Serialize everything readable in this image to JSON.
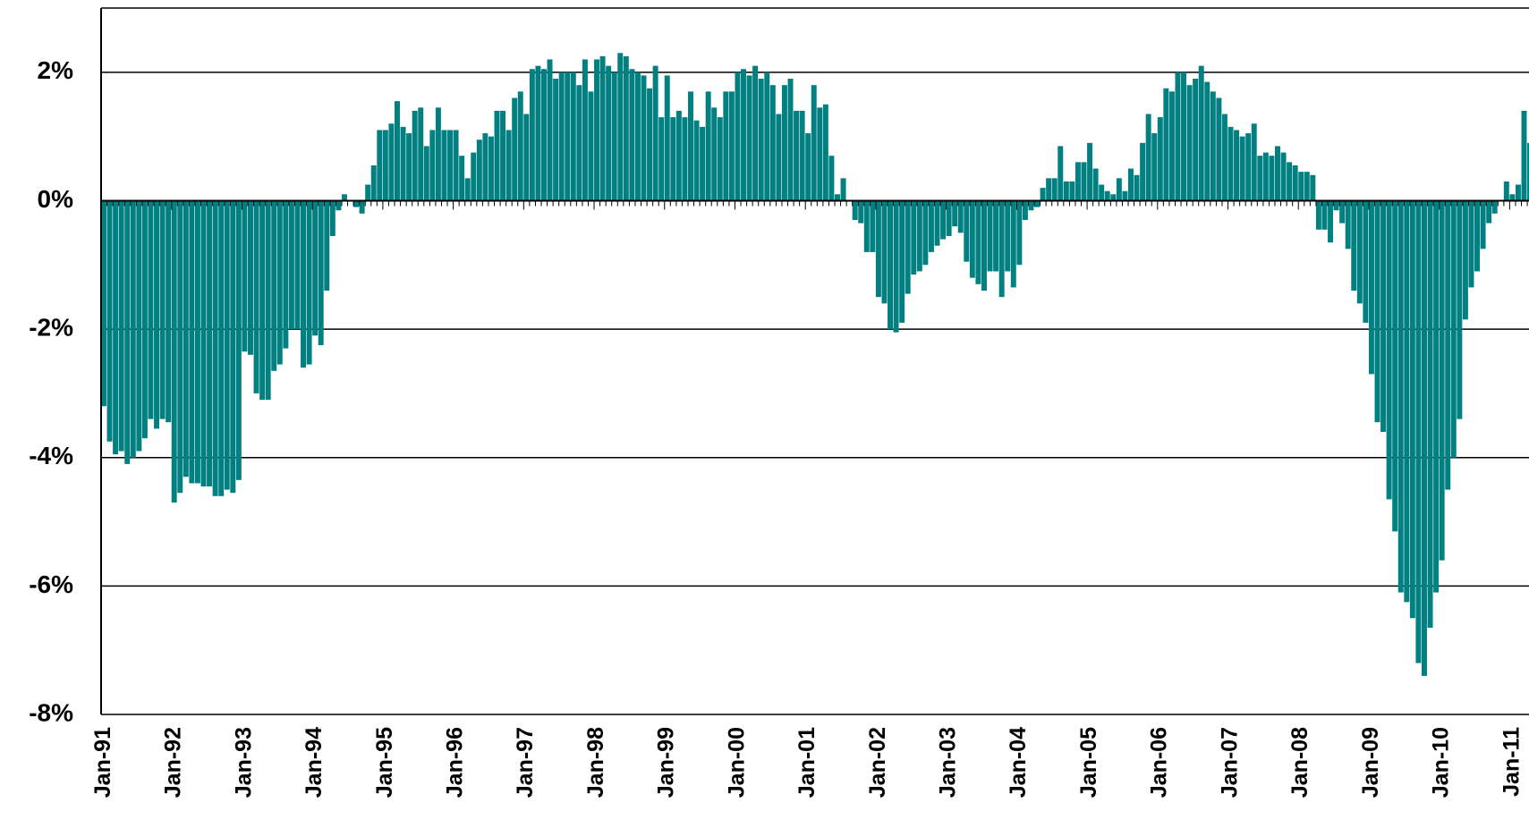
{
  "chart_data": {
    "type": "bar",
    "color": "#008080",
    "grid": true,
    "ylim": [
      -8,
      3
    ],
    "yticks": [
      {
        "value": -8,
        "label": "-8%"
      },
      {
        "value": -6,
        "label": "-6%"
      },
      {
        "value": -4,
        "label": "-4%"
      },
      {
        "value": -2,
        "label": "-2%"
      },
      {
        "value": 0,
        "label": "0%"
      },
      {
        "value": 2,
        "label": "2%"
      }
    ],
    "categories": [
      "Jan-91",
      null,
      null,
      null,
      null,
      null,
      null,
      null,
      null,
      null,
      null,
      null,
      "Jan-92",
      null,
      null,
      null,
      null,
      null,
      null,
      null,
      null,
      null,
      null,
      null,
      "Jan-93",
      null,
      null,
      null,
      null,
      null,
      null,
      null,
      null,
      null,
      null,
      null,
      "Jan-94",
      null,
      null,
      null,
      null,
      null,
      null,
      null,
      null,
      null,
      null,
      null,
      "Jan-95",
      null,
      null,
      null,
      null,
      null,
      null,
      null,
      null,
      null,
      null,
      null,
      "Jan-96",
      null,
      null,
      null,
      null,
      null,
      null,
      null,
      null,
      null,
      null,
      null,
      "Jan-97",
      null,
      null,
      null,
      null,
      null,
      null,
      null,
      null,
      null,
      null,
      null,
      "Jan-98",
      null,
      null,
      null,
      null,
      null,
      null,
      null,
      null,
      null,
      null,
      null,
      "Jan-99",
      null,
      null,
      null,
      null,
      null,
      null,
      null,
      null,
      null,
      null,
      null,
      "Jan-00",
      null,
      null,
      null,
      null,
      null,
      null,
      null,
      null,
      null,
      null,
      null,
      "Jan-01",
      null,
      null,
      null,
      null,
      null,
      null,
      null,
      null,
      null,
      null,
      null,
      "Jan-02",
      null,
      null,
      null,
      null,
      null,
      null,
      null,
      null,
      null,
      null,
      null,
      "Jan-03",
      null,
      null,
      null,
      null,
      null,
      null,
      null,
      null,
      null,
      null,
      null,
      "Jan-04",
      null,
      null,
      null,
      null,
      null,
      null,
      null,
      null,
      null,
      null,
      null,
      "Jan-05",
      null,
      null,
      null,
      null,
      null,
      null,
      null,
      null,
      null,
      null,
      null,
      "Jan-06",
      null,
      null,
      null,
      null,
      null,
      null,
      null,
      null,
      null,
      null,
      null,
      "Jan-07",
      null,
      null,
      null,
      null,
      null,
      null,
      null,
      null,
      null,
      null,
      null,
      "Jan-08",
      null,
      null,
      null,
      null,
      null,
      null,
      null,
      null,
      null,
      null,
      null,
      "Jan-09",
      null,
      null,
      null,
      null,
      null,
      null,
      null,
      null,
      null,
      null,
      null,
      "Jan-10",
      null,
      null,
      null,
      null,
      null,
      null,
      null,
      null,
      null,
      null,
      null,
      "Jan-11",
      null,
      null,
      null
    ],
    "values": [
      -3.2,
      -3.75,
      -3.95,
      -3.9,
      -4.1,
      -4.0,
      -3.9,
      -3.7,
      -3.4,
      -3.55,
      -3.4,
      -3.45,
      -4.7,
      -4.55,
      -4.3,
      -4.4,
      -4.4,
      -4.45,
      -4.45,
      -4.6,
      -4.6,
      -4.5,
      -4.55,
      -4.35,
      -2.35,
      -2.4,
      -3.0,
      -3.1,
      -3.1,
      -2.65,
      -2.55,
      -2.3,
      -2.0,
      -2.0,
      -2.6,
      -2.55,
      -2.1,
      -2.25,
      -1.4,
      -0.55,
      -0.15,
      0.1,
      0.0,
      -0.1,
      -0.2,
      0.25,
      0.55,
      1.1,
      1.1,
      1.2,
      1.55,
      1.15,
      1.05,
      1.4,
      1.45,
      0.85,
      1.1,
      1.45,
      1.1,
      1.1,
      1.1,
      0.7,
      0.35,
      0.75,
      0.95,
      1.05,
      1.0,
      1.4,
      1.4,
      1.1,
      1.6,
      1.7,
      1.35,
      2.05,
      2.1,
      2.05,
      2.2,
      1.9,
      2.0,
      2.0,
      2.0,
      1.8,
      2.2,
      1.7,
      2.2,
      2.25,
      2.1,
      2.0,
      2.3,
      2.25,
      2.05,
      2.0,
      1.95,
      1.75,
      2.1,
      1.3,
      1.95,
      1.3,
      1.4,
      1.3,
      1.7,
      1.25,
      1.15,
      1.7,
      1.45,
      1.3,
      1.7,
      1.7,
      2.0,
      2.05,
      1.95,
      2.1,
      1.9,
      2.0,
      1.8,
      1.35,
      1.8,
      1.9,
      1.4,
      1.4,
      1.05,
      1.8,
      1.45,
      1.5,
      0.7,
      0.1,
      0.35,
      0.0,
      -0.3,
      -0.35,
      -0.8,
      -0.8,
      -1.5,
      -1.6,
      -2.0,
      -2.05,
      -1.9,
      -1.45,
      -1.15,
      -1.1,
      -1.0,
      -0.8,
      -0.7,
      -0.6,
      -0.55,
      -0.4,
      -0.5,
      -0.95,
      -1.2,
      -1.3,
      -1.4,
      -1.1,
      -1.1,
      -1.5,
      -1.1,
      -1.35,
      -1.0,
      -0.3,
      -0.15,
      -0.1,
      0.2,
      0.35,
      0.35,
      0.85,
      0.3,
      0.3,
      0.6,
      0.6,
      0.9,
      0.5,
      0.25,
      0.15,
      0.1,
      0.35,
      0.15,
      0.5,
      0.4,
      0.9,
      1.35,
      1.05,
      1.3,
      1.75,
      1.7,
      2.0,
      2.0,
      1.8,
      1.9,
      2.1,
      1.85,
      1.7,
      1.6,
      1.35,
      1.15,
      1.1,
      1.0,
      1.05,
      1.2,
      0.7,
      0.75,
      0.7,
      0.85,
      0.75,
      0.6,
      0.55,
      0.45,
      0.45,
      0.4,
      -0.45,
      -0.45,
      -0.65,
      -0.15,
      -0.35,
      -0.75,
      -1.4,
      -1.6,
      -1.9,
      -2.7,
      -3.45,
      -3.6,
      -4.65,
      -5.15,
      -6.1,
      -6.25,
      -6.5,
      -7.2,
      -7.4,
      -6.65,
      -6.1,
      -5.6,
      -4.5,
      -4.0,
      -3.4,
      -1.85,
      -1.35,
      -1.1,
      -0.75,
      -0.35,
      -0.2,
      0.0,
      0.3,
      0.1,
      0.25,
      1.4,
      0.9
    ]
  }
}
